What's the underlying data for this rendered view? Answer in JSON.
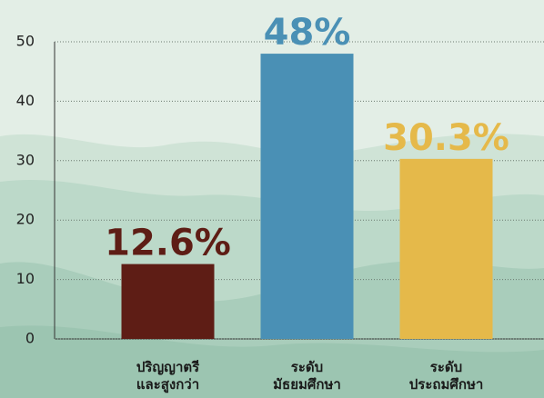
{
  "chart_data": {
    "type": "bar",
    "categories": [
      "ปริญญาตรี\nและสูงกว่า",
      "ระดับ\nมัธยมศึกษา",
      "ระดับ\nประถมศึกษา"
    ],
    "values": [
      12.6,
      48,
      30.3
    ],
    "value_labels": [
      "12.6%",
      "48%",
      "30.3%"
    ],
    "colors": [
      "#5e1d15",
      "#4a90b5",
      "#e5b94a"
    ],
    "ylim": [
      0,
      50
    ],
    "yticks": [
      0,
      10,
      20,
      30,
      40,
      50
    ],
    "grid": true
  }
}
